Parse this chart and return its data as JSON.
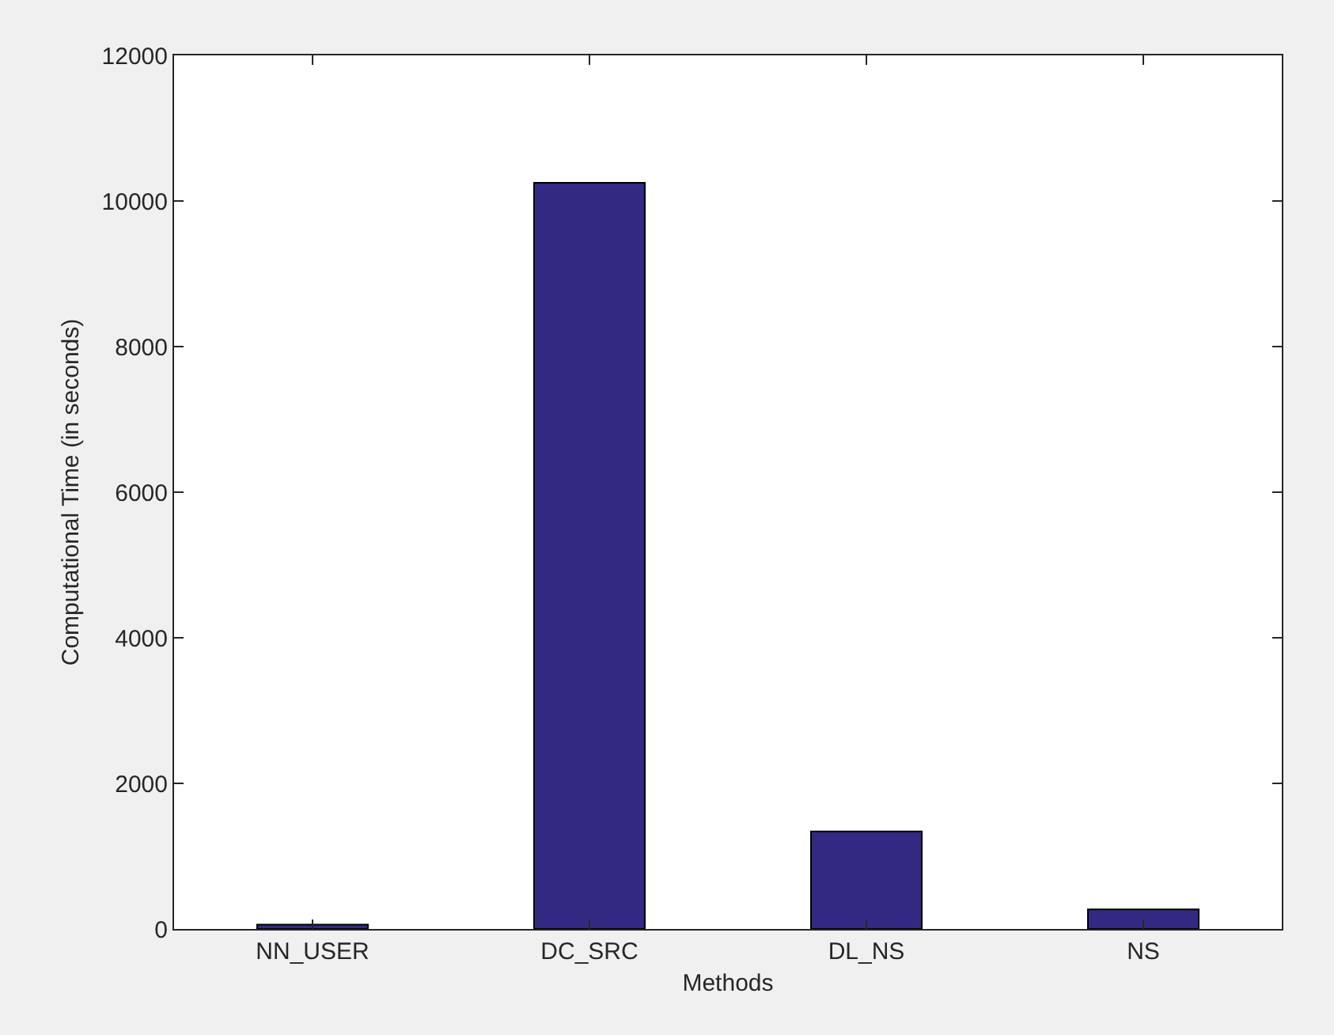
{
  "chart_data": {
    "type": "bar",
    "xlabel": "Methods",
    "ylabel": "Computational Time (in seconds)",
    "categories": [
      "NN_USER",
      "DC_SRC",
      "DL_NS",
      "NS"
    ],
    "values": [
      60,
      10250,
      1340,
      270
    ],
    "color": "#322a82",
    "ylim": [
      0,
      12000
    ],
    "yticks": [
      0,
      2000,
      4000,
      6000,
      8000,
      10000,
      12000
    ],
    "grid": false,
    "legend": false
  }
}
